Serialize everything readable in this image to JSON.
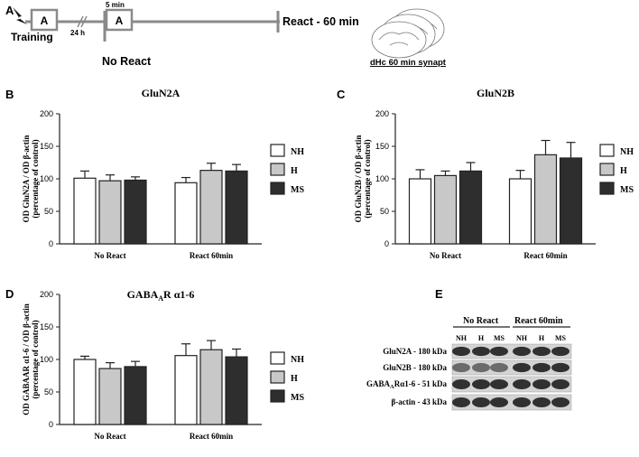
{
  "panels": {
    "A": "A",
    "B": "B",
    "C": "C",
    "D": "D",
    "E": "E"
  },
  "timeline": {
    "box1": "A",
    "box2": "A",
    "training": "Training",
    "gap": "24 h",
    "duration": "5 min",
    "react_label": "React  - 60 min",
    "no_react": "No React",
    "brain_caption": "dHc 60 min synapt"
  },
  "colors": {
    "NH": "#ffffff",
    "H": "#c8c8c8",
    "MS": "#2e2e2e",
    "stroke": "#222222",
    "timeline_box": "#8a8a8a"
  },
  "chart_data": [
    {
      "type": "bar",
      "panel": "B",
      "title": "GluN2A",
      "ylabel_line1": "OD GluN2A / OD β-actin",
      "ylabel_line2": "(percentage of control)",
      "categories": [
        "No React",
        "React 60min"
      ],
      "ylim": [
        0,
        200
      ],
      "yticks": [
        0,
        50,
        100,
        150,
        200
      ],
      "series": [
        {
          "name": "NH",
          "values": [
            101,
            94
          ],
          "errors": [
            11,
            8
          ]
        },
        {
          "name": "H",
          "values": [
            97,
            113
          ],
          "errors": [
            9,
            11
          ]
        },
        {
          "name": "MS",
          "values": [
            98,
            112
          ],
          "errors": [
            5,
            10
          ]
        }
      ],
      "legend": "right"
    },
    {
      "type": "bar",
      "panel": "C",
      "title": "GluN2B",
      "ylabel_line1": "OD GluN2B / OD β-actin",
      "ylabel_line2": "(percentage of control)",
      "categories": [
        "No React",
        "React 60min"
      ],
      "ylim": [
        0,
        200
      ],
      "yticks": [
        0,
        50,
        100,
        150,
        200
      ],
      "series": [
        {
          "name": "NH",
          "values": [
            100,
            100
          ],
          "errors": [
            14,
            13
          ]
        },
        {
          "name": "H",
          "values": [
            105,
            137
          ],
          "errors": [
            7,
            22
          ]
        },
        {
          "name": "MS",
          "values": [
            112,
            132
          ],
          "errors": [
            13,
            24
          ]
        }
      ],
      "legend": "right"
    },
    {
      "type": "bar",
      "panel": "D",
      "title": "GABA",
      "title_sub": "A",
      "title_rest": "R α1-6",
      "ylabel_line1": "OD GABAAR α1-6 / OD β-actin",
      "ylabel_line2": "(percentage of control)",
      "categories": [
        "No React",
        "React 60min"
      ],
      "ylim": [
        0,
        200
      ],
      "yticks": [
        0,
        50,
        100,
        150,
        200
      ],
      "series": [
        {
          "name": "NH",
          "values": [
            100,
            106
          ],
          "errors": [
            5,
            18
          ]
        },
        {
          "name": "H",
          "values": [
            86,
            115
          ],
          "errors": [
            9,
            14
          ]
        },
        {
          "name": "MS",
          "values": [
            89,
            104
          ],
          "errors": [
            8,
            12
          ]
        }
      ],
      "legend": "right"
    }
  ],
  "western_blot": {
    "groups": [
      "No React",
      "React 60min"
    ],
    "lanes": [
      "NH",
      "H",
      "MS",
      "NH",
      "H",
      "MS"
    ],
    "rows": [
      {
        "label": "GluN2A - 180 kDa"
      },
      {
        "label": "GluN2B - 180 kDa"
      },
      {
        "label_main": "GABA",
        "label_sub": "A",
        "label_rest": "Rα1-6 - 51 kDa"
      },
      {
        "label": "β-actin - 43 kDa"
      }
    ]
  }
}
